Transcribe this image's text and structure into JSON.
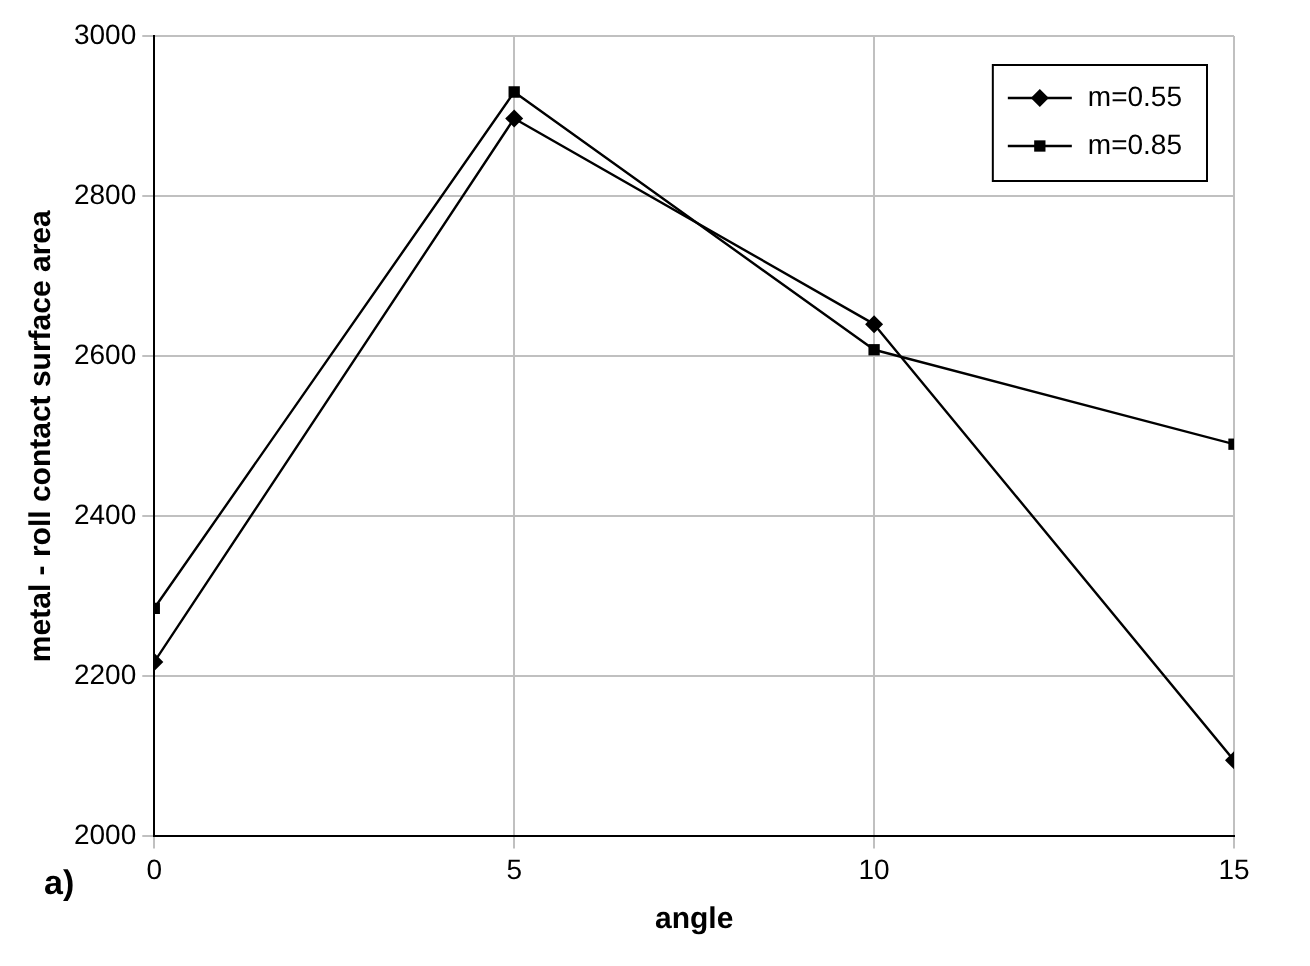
{
  "chart_data": {
    "type": "line",
    "xlabel": "angle",
    "ylabel": "metal - roll contact surface area",
    "x": [
      0,
      5,
      10,
      15
    ],
    "series": [
      {
        "name": "m=0.55",
        "color": "#000000",
        "marker": "diamond",
        "values": [
          2218,
          2897,
          2640,
          2095
        ]
      },
      {
        "name": "m=0.85",
        "color": "#000000",
        "marker": "square",
        "values": [
          2285,
          2930,
          2608,
          2490
        ]
      }
    ],
    "xlim": [
      0,
      15
    ],
    "xticks": [
      0,
      5,
      10,
      15
    ],
    "ylim": [
      2000,
      3000
    ],
    "yticks": [
      2000,
      2200,
      2400,
      2600,
      2800,
      3000
    ],
    "grid": true,
    "legend": "top right",
    "line_style": "solid",
    "annotations": [
      "a)"
    ]
  }
}
